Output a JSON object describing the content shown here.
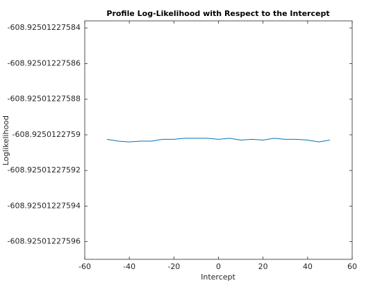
{
  "chart_data": {
    "type": "line",
    "title": "Profile Log-Likelihood with Respect to the Intercept",
    "x_label": "Intercept",
    "y_label": "Loglikelihood",
    "x": [
      -50,
      -45,
      -40,
      -35,
      -30,
      -25,
      -20,
      -15,
      -10,
      -5,
      0,
      5,
      10,
      15,
      20,
      25,
      30,
      35,
      40,
      45,
      50
    ],
    "series": [
      {
        "color": "#0072bd",
        "values": [
          -608.9250122759025,
          -608.9250122759036,
          -608.925012275904,
          -608.9250122759036,
          -608.9250122759036,
          -608.9250122759025,
          -608.9250122759025,
          -608.925012275902,
          -608.925012275902,
          -608.925012275902,
          -608.9250122759025,
          -608.925012275902,
          -608.925012275903,
          -608.9250122759025,
          -608.925012275903,
          -608.925012275902,
          -608.9250122759025,
          -608.9250122759025,
          -608.925012275903,
          -608.925012275904,
          -608.925012275903
        ]
      }
    ],
    "xlim": [
      -60,
      60
    ],
    "xticks": [
      -60,
      -40,
      -20,
      0,
      20,
      40,
      60
    ],
    "ylim": [
      -608.92501227597,
      -608.925012275836
    ],
    "yticks": [
      -608.92501227584,
      -608.92501227586,
      -608.92501227588,
      -608.9250122759,
      -608.92501227592,
      -608.92501227594,
      -608.92501227596
    ]
  }
}
